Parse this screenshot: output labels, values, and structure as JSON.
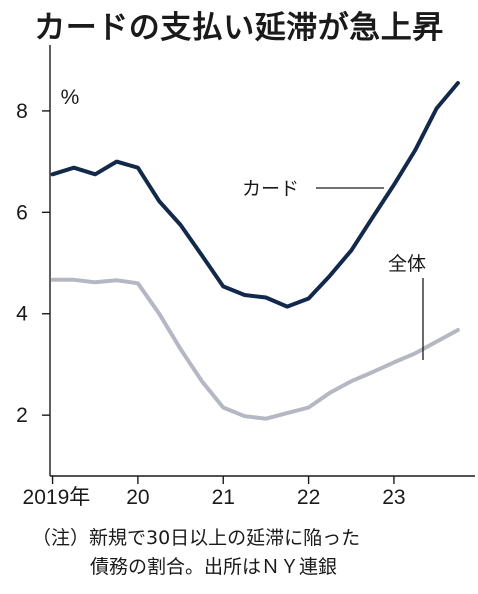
{
  "chart_data": {
    "type": "line",
    "title": "カードの支払い延滞が急上昇",
    "unit_label": "%",
    "x_tick_labels": [
      "2019年",
      "20",
      "21",
      "22",
      "23"
    ],
    "x_tick_values": [
      2019.0,
      2020.0,
      2021.0,
      2022.0,
      2023.0
    ],
    "xlim": [
      2018.97,
      2023.95
    ],
    "ylim": [
      0.8,
      9.3
    ],
    "yticks": [
      2,
      4,
      6,
      8
    ],
    "grid": false,
    "series": [
      {
        "name": "カード",
        "color": "#13294b",
        "x": [
          2019.0,
          2019.25,
          2019.5,
          2019.75,
          2020.0,
          2020.25,
          2020.5,
          2020.75,
          2021.0,
          2021.25,
          2021.5,
          2021.75,
          2022.0,
          2022.25,
          2022.5,
          2022.75,
          2023.0,
          2023.25,
          2023.5,
          2023.75
        ],
        "values": [
          6.75,
          6.88,
          6.75,
          7.0,
          6.88,
          6.22,
          5.75,
          5.15,
          4.54,
          4.37,
          4.32,
          4.14,
          4.3,
          4.75,
          5.25,
          5.9,
          6.54,
          7.23,
          8.05,
          8.55
        ]
      },
      {
        "name": "全体",
        "color": "#b5b7c2",
        "x": [
          2019.0,
          2019.25,
          2019.5,
          2019.75,
          2020.0,
          2020.25,
          2020.5,
          2020.75,
          2021.0,
          2021.25,
          2021.5,
          2021.75,
          2022.0,
          2022.25,
          2022.5,
          2022.75,
          2023.0,
          2023.25,
          2023.5,
          2023.75
        ],
        "values": [
          4.67,
          4.67,
          4.62,
          4.66,
          4.6,
          4.0,
          3.3,
          2.67,
          2.15,
          1.98,
          1.93,
          2.04,
          2.15,
          2.44,
          2.67,
          2.85,
          3.04,
          3.22,
          3.45,
          3.68
        ]
      }
    ]
  },
  "note": {
    "line1": "（注）新規で30日以上の延滞に陥った",
    "line2": "債務の割合。出所はＮＹ連銀"
  }
}
